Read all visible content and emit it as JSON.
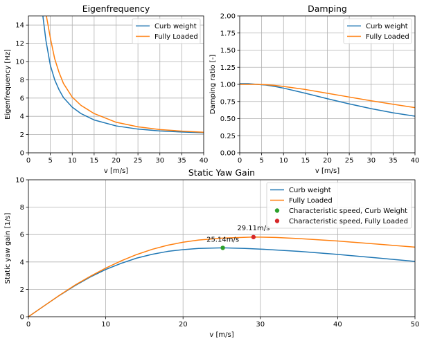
{
  "chart_data": [
    {
      "id": "eigen",
      "type": "line",
      "title": "Eigenfrequency",
      "xlabel": "v [m/s]",
      "ylabel": "Eigenfrequency [Hz]",
      "xlim": [
        0,
        40
      ],
      "ylim": [
        0,
        15
      ],
      "xticks": [
        0,
        5,
        10,
        15,
        20,
        25,
        30,
        35,
        40
      ],
      "yticks": [
        0,
        2,
        4,
        6,
        8,
        10,
        12,
        14
      ],
      "grid": true,
      "legend_position": "top-right",
      "series": [
        {
          "name": "Curb weight",
          "color": "#1f77b4",
          "x": [
            3.3,
            4,
            5,
            6,
            7,
            8,
            10,
            12,
            15,
            20,
            25,
            30,
            35,
            40
          ],
          "y": [
            15,
            12.3,
            9.6,
            8.0,
            6.9,
            6.05,
            5.0,
            4.3,
            3.6,
            2.95,
            2.6,
            2.4,
            2.28,
            2.2
          ]
        },
        {
          "name": "Fully Loaded",
          "color": "#ff7f0e",
          "x": [
            4.1,
            5,
            6,
            7,
            8,
            10,
            12,
            15,
            20,
            25,
            30,
            35,
            40
          ],
          "y": [
            15,
            12.6,
            10.3,
            8.8,
            7.6,
            6.1,
            5.2,
            4.3,
            3.35,
            2.85,
            2.55,
            2.38,
            2.25
          ]
        }
      ]
    },
    {
      "id": "damping",
      "type": "line",
      "title": "Damping",
      "xlabel": "v [m/s]",
      "ylabel": "Damping ratio [-]",
      "xlim": [
        0,
        40
      ],
      "ylim": [
        0,
        2
      ],
      "xticks": [
        0,
        5,
        10,
        15,
        20,
        25,
        30,
        35,
        40
      ],
      "yticks": [
        0.0,
        0.25,
        0.5,
        0.75,
        1.0,
        1.25,
        1.5,
        1.75,
        2.0
      ],
      "yticklabels": [
        "0.00",
        "0.25",
        "0.50",
        "0.75",
        "1.00",
        "1.25",
        "1.50",
        "1.75",
        "2.00"
      ],
      "grid": true,
      "legend_position": "top-right",
      "series": [
        {
          "name": "Curb weight",
          "color": "#1f77b4",
          "x": [
            0,
            2,
            4,
            6,
            8,
            10,
            15,
            20,
            25,
            30,
            35,
            40
          ],
          "y": [
            1.01,
            1.01,
            1.0,
            0.99,
            0.97,
            0.945,
            0.87,
            0.79,
            0.715,
            0.645,
            0.585,
            0.535
          ]
        },
        {
          "name": "Fully Loaded",
          "color": "#ff7f0e",
          "x": [
            0,
            2,
            4,
            6,
            8,
            10,
            15,
            20,
            25,
            30,
            35,
            40
          ],
          "y": [
            1.0,
            1.0,
            1.0,
            0.995,
            0.985,
            0.97,
            0.925,
            0.87,
            0.815,
            0.76,
            0.71,
            0.66
          ]
        }
      ]
    },
    {
      "id": "yaw",
      "type": "line",
      "title": "Static Yaw Gain",
      "xlabel": "v [m/s]",
      "ylabel": "Static yaw gain [1/s]",
      "xlim": [
        0,
        50
      ],
      "ylim": [
        0,
        10
      ],
      "xticks": [
        0,
        10,
        20,
        30,
        40,
        50
      ],
      "yticks": [
        0,
        2,
        4,
        6,
        8,
        10
      ],
      "grid": true,
      "legend_position": "top-right",
      "series": [
        {
          "name": "Curb weight",
          "color": "#1f77b4",
          "x": [
            0,
            2,
            4,
            6,
            8,
            10,
            12,
            14,
            16,
            18,
            20,
            22,
            25.14,
            28,
            30,
            35,
            40,
            45,
            50
          ],
          "y": [
            0,
            0.78,
            1.55,
            2.26,
            2.9,
            3.45,
            3.9,
            4.28,
            4.56,
            4.77,
            4.9,
            4.99,
            5.03,
            4.99,
            4.94,
            4.77,
            4.55,
            4.3,
            4.04
          ]
        },
        {
          "name": "Fully Loaded",
          "color": "#ff7f0e",
          "x": [
            0,
            2,
            4,
            6,
            8,
            10,
            12,
            14,
            16,
            18,
            20,
            22,
            25,
            29.11,
            32,
            35,
            40,
            45,
            50
          ],
          "y": [
            0,
            0.78,
            1.56,
            2.3,
            2.95,
            3.55,
            4.08,
            4.54,
            4.92,
            5.22,
            5.44,
            5.6,
            5.74,
            5.82,
            5.79,
            5.71,
            5.53,
            5.31,
            5.08
          ]
        },
        {
          "name": "Characteristic speed, Curb Weight",
          "type": "scatter",
          "color": "#2ca02c",
          "x": [
            25.14
          ],
          "y": [
            5.03
          ]
        },
        {
          "name": "Characteristic speed, Fully Loaded",
          "type": "scatter",
          "color": "#d62728",
          "x": [
            29.11
          ],
          "y": [
            5.82
          ]
        }
      ],
      "annotations": [
        {
          "text": "25.14m/s",
          "x": 25.14,
          "y": 5.03
        },
        {
          "text": "29.11m/s",
          "x": 29.11,
          "y": 5.82
        }
      ]
    }
  ]
}
